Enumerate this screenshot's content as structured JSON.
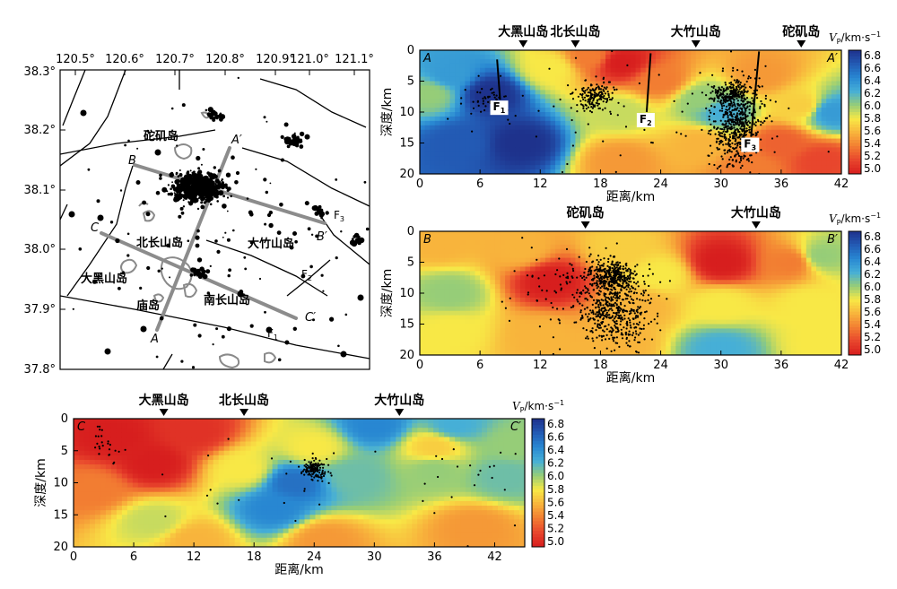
{
  "map": {
    "lon_ticks": [
      "120.5°",
      "120.6°",
      "120.7°",
      "120.8°",
      "120.9°",
      "121.0°",
      "121.1°"
    ],
    "lat_ticks": [
      "38.3°",
      "38.2°",
      "38.1°",
      "38.0°",
      "37.9°",
      "37.8°"
    ],
    "labels": {
      "tuoji": "砣矶岛",
      "beichang": "北长山岛",
      "dazhu": "大竹山岛",
      "daheishan": "大黑山岛",
      "miaodao": "庙岛",
      "nanchang": "南长山岛",
      "A": "A",
      "Ap": "A′",
      "B": "B",
      "Bp": "B′",
      "C": "C",
      "Cp": "C′",
      "F1": "F",
      "F1s": "1",
      "F2": "F",
      "F2s": "2",
      "F3": "F",
      "F3s": "3"
    }
  },
  "chart_data": [
    {
      "type": "heatmap",
      "id": "A-A'",
      "corner_left": "A",
      "corner_right": "A′",
      "xlabel": "距离/km",
      "ylabel": "深度/km",
      "xticks": [
        "0",
        "6",
        "12",
        "18",
        "24",
        "30",
        "36",
        "42"
      ],
      "yticks": [
        "0",
        "5",
        "10",
        "15",
        "20"
      ],
      "xlim": [
        0,
        42
      ],
      "ylim": [
        20,
        0
      ],
      "markers": [
        {
          "x": 10.3,
          "label": "大黑山岛"
        },
        {
          "x": 15.5,
          "label": "北长山岛"
        },
        {
          "x": 27.5,
          "label": "大竹山岛"
        },
        {
          "x": 38.0,
          "label": "砣矶岛"
        }
      ],
      "faults": [
        {
          "x1": 7.7,
          "y1": 1.5,
          "x2": 8.0,
          "y2": 8.0,
          "label": "F",
          "sub": "1"
        },
        {
          "x1": 23.0,
          "y1": 0.5,
          "x2": 22.6,
          "y2": 10.0,
          "label": "F",
          "sub": "2"
        },
        {
          "x1": 33.8,
          "y1": 0.2,
          "x2": 33.0,
          "y2": 14.0,
          "label": "F",
          "sub": "3"
        }
      ],
      "anomalies": [
        {
          "x": 7,
          "y": 7,
          "v": 6.8
        },
        {
          "x": 3,
          "y": 4,
          "v": 6.3
        },
        {
          "x": 10,
          "y": 15,
          "v": 6.8
        },
        {
          "x": 4,
          "y": 15,
          "v": 6.6
        },
        {
          "x": 1,
          "y": 7,
          "v": 6.0
        },
        {
          "x": 13,
          "y": 3,
          "v": 5.8
        },
        {
          "x": 20,
          "y": 2,
          "v": 5.0
        },
        {
          "x": 17,
          "y": 1,
          "v": 5.4
        },
        {
          "x": 24,
          "y": 5,
          "v": 5.4
        },
        {
          "x": 20,
          "y": 10,
          "v": 5.9
        },
        {
          "x": 28,
          "y": 8,
          "v": 6.0
        },
        {
          "x": 30,
          "y": 10,
          "v": 6.2
        },
        {
          "x": 34,
          "y": 4,
          "v": 5.5
        },
        {
          "x": 38,
          "y": 9,
          "v": 5.7
        },
        {
          "x": 41,
          "y": 10,
          "v": 6.3
        },
        {
          "x": 28,
          "y": 15,
          "v": 5.6
        },
        {
          "x": 36,
          "y": 15,
          "v": 5.3
        },
        {
          "x": 40,
          "y": 18,
          "v": 5.2
        },
        {
          "x": 20,
          "y": 18,
          "v": 5.5
        },
        {
          "x": 33,
          "y": 19,
          "v": 5.4
        }
      ],
      "quake_clusters": [
        {
          "x": 17.5,
          "y": 7.5,
          "sx": 0.9,
          "sy": 1.2,
          "n": 160
        },
        {
          "x": 31.5,
          "y": 12.0,
          "sx": 1.2,
          "sy": 3.5,
          "n": 600
        },
        {
          "x": 31.0,
          "y": 7.0,
          "sx": 1.0,
          "sy": 0.9,
          "n": 160
        },
        {
          "x": 7.0,
          "y": 8.0,
          "sx": 1.0,
          "sy": 1.0,
          "n": 40
        },
        {
          "x": 21.0,
          "y": 10.0,
          "sx": 10.0,
          "sy": 5.0,
          "n": 80
        }
      ]
    },
    {
      "type": "heatmap",
      "id": "B-B'",
      "corner_left": "B",
      "corner_right": "B′",
      "xlabel": "距离/km",
      "ylabel": "深度/km",
      "xticks": [
        "0",
        "6",
        "12",
        "18",
        "24",
        "30",
        "36",
        "42"
      ],
      "yticks": [
        "0",
        "5",
        "10",
        "15",
        "20"
      ],
      "xlim": [
        0,
        42
      ],
      "ylim": [
        20,
        0
      ],
      "markers": [
        {
          "x": 16.5,
          "label": "砣矶岛"
        },
        {
          "x": 33.5,
          "label": "大竹山岛"
        }
      ],
      "faults": [],
      "anomalies": [
        {
          "x": 2,
          "y": 2,
          "v": 5.6
        },
        {
          "x": 3,
          "y": 10,
          "v": 6.0
        },
        {
          "x": 3,
          "y": 16,
          "v": 5.8
        },
        {
          "x": 13,
          "y": 8,
          "v": 5.0
        },
        {
          "x": 10,
          "y": 3,
          "v": 5.6
        },
        {
          "x": 20,
          "y": 3,
          "v": 5.7
        },
        {
          "x": 24,
          "y": 7,
          "v": 5.8
        },
        {
          "x": 30,
          "y": 5,
          "v": 5.0
        },
        {
          "x": 37,
          "y": 5,
          "v": 5.4
        },
        {
          "x": 40,
          "y": 4,
          "v": 6.0
        },
        {
          "x": 39,
          "y": 12,
          "v": 5.8
        },
        {
          "x": 30,
          "y": 12,
          "v": 5.8
        },
        {
          "x": 30,
          "y": 19,
          "v": 6.2
        },
        {
          "x": 20,
          "y": 18,
          "v": 5.6
        },
        {
          "x": 12,
          "y": 17,
          "v": 5.6
        },
        {
          "x": 22,
          "y": 12,
          "v": 5.6
        },
        {
          "x": 40,
          "y": 18,
          "v": 5.8
        }
      ],
      "quake_clusters": [
        {
          "x": 19.0,
          "y": 7.0,
          "sx": 1.3,
          "sy": 1.0,
          "n": 250
        },
        {
          "x": 19.5,
          "y": 12.5,
          "sx": 1.8,
          "sy": 3.0,
          "n": 550
        },
        {
          "x": 16.0,
          "y": 9.0,
          "sx": 3.5,
          "sy": 3.5,
          "n": 120
        }
      ]
    },
    {
      "type": "heatmap",
      "id": "C-C'",
      "corner_left": "C",
      "corner_right": "C′",
      "xlabel": "距离/km",
      "ylabel": "深度/km",
      "xticks": [
        "0",
        "6",
        "12",
        "18",
        "24",
        "30",
        "36",
        "42"
      ],
      "yticks": [
        "0",
        "5",
        "10",
        "15",
        "20"
      ],
      "xlim": [
        0,
        45
      ],
      "ylim": [
        20,
        0
      ],
      "markers": [
        {
          "x": 9.0,
          "label": "大黑山岛"
        },
        {
          "x": 17.0,
          "label": "北长山岛"
        },
        {
          "x": 32.5,
          "label": "大竹山岛"
        }
      ],
      "faults": [],
      "anomalies": [
        {
          "x": 4,
          "y": 3,
          "v": 5.0
        },
        {
          "x": 8,
          "y": 7,
          "v": 5.0
        },
        {
          "x": 12,
          "y": 2,
          "v": 5.1
        },
        {
          "x": 2,
          "y": 11,
          "v": 5.4
        },
        {
          "x": 17,
          "y": 8,
          "v": 5.8
        },
        {
          "x": 22,
          "y": 10,
          "v": 6.5
        },
        {
          "x": 20,
          "y": 14,
          "v": 6.4
        },
        {
          "x": 30,
          "y": 1,
          "v": 6.4
        },
        {
          "x": 38,
          "y": 1,
          "v": 6.2
        },
        {
          "x": 28,
          "y": 9,
          "v": 6.1
        },
        {
          "x": 36,
          "y": 8,
          "v": 6.0
        },
        {
          "x": 43,
          "y": 9,
          "v": 6.1
        },
        {
          "x": 36,
          "y": 4.5,
          "v": 5.7
        },
        {
          "x": 24,
          "y": 4.5,
          "v": 5.8
        },
        {
          "x": 8,
          "y": 16,
          "v": 5.9
        },
        {
          "x": 12,
          "y": 19,
          "v": 5.6
        },
        {
          "x": 25,
          "y": 19,
          "v": 5.5
        },
        {
          "x": 40,
          "y": 17,
          "v": 5.5
        },
        {
          "x": 44,
          "y": 4,
          "v": 6.0
        }
      ],
      "quake_clusters": [
        {
          "x": 24.0,
          "y": 8.0,
          "sx": 0.6,
          "sy": 0.9,
          "n": 140
        },
        {
          "x": 3.0,
          "y": 4.0,
          "sx": 0.9,
          "sy": 1.8,
          "n": 25
        },
        {
          "x": 40.0,
          "y": 7.0,
          "sx": 2.5,
          "sy": 3.0,
          "n": 15
        },
        {
          "x": 22.0,
          "y": 10.0,
          "sx": 12.0,
          "sy": 5.0,
          "n": 25
        }
      ]
    }
  ],
  "colorbar": {
    "title_v": "V",
    "title_sub": "P",
    "title_unit": "/km·s",
    "title_sup": "−1",
    "ticks": [
      "6.8",
      "6.6",
      "6.4",
      "6.2",
      "6.0",
      "5.8",
      "5.6",
      "5.4",
      "5.2",
      "5.0"
    ]
  }
}
